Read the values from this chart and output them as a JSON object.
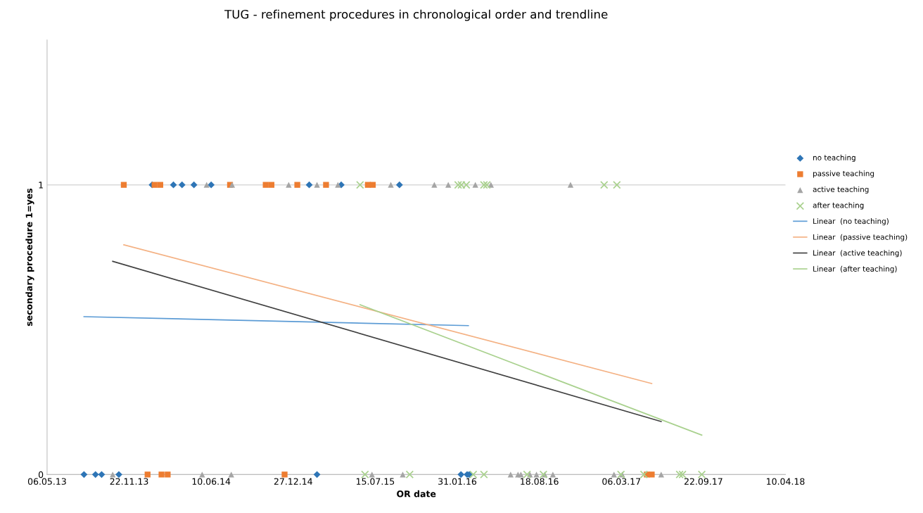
{
  "chart_data": {
    "type": "scatter",
    "title": "TUG - refinement procedures in chronological order and trendline",
    "xlabel": "OR date",
    "ylabel": "secondary procedure 1=yes",
    "xlim": [
      "2013-05-06",
      "2018-04-10"
    ],
    "xticks": [
      {
        "value": "2013-05-06",
        "label": "06.05.13"
      },
      {
        "value": "2013-11-22",
        "label": "22.11.13"
      },
      {
        "value": "2014-06-10",
        "label": "10.06.14"
      },
      {
        "value": "2014-12-27",
        "label": "27.12.14"
      },
      {
        "value": "2015-07-15",
        "label": "15.07.15"
      },
      {
        "value": "2016-01-31",
        "label": "31.01.16"
      },
      {
        "value": "2016-08-18",
        "label": "18.08.16"
      },
      {
        "value": "2017-03-06",
        "label": "06.03.17"
      },
      {
        "value": "2017-09-22",
        "label": "22.09.17"
      },
      {
        "value": "2018-04-10",
        "label": "10.04.18"
      }
    ],
    "ylim": [
      0,
      1.5
    ],
    "yticks": [
      0,
      1
    ],
    "grid": "y",
    "legend": "right",
    "series": [
      {
        "name": "no teaching",
        "marker": "diamond",
        "color": "#2e75b6",
        "x": [
          "2013-08-04",
          "2013-09-01",
          "2013-09-16",
          "2013-10-28",
          "2014-01-17",
          "2014-03-10",
          "2014-03-31",
          "2014-04-29",
          "2014-06-10",
          "2015-02-04",
          "2015-02-23",
          "2015-04-23",
          "2015-09-12",
          "2016-02-09",
          "2016-02-24",
          "2016-02-29"
        ],
        "values": [
          0,
          0,
          0,
          0,
          1,
          1,
          1,
          1,
          1,
          1,
          0,
          1,
          1,
          0,
          0,
          0
        ]
      },
      {
        "name": "passive teaching",
        "marker": "square",
        "color": "#ed7d31",
        "x": [
          "2013-11-09",
          "2014-01-06",
          "2014-01-23",
          "2014-02-06",
          "2014-02-09",
          "2014-02-24",
          "2014-07-26",
          "2014-10-21",
          "2014-11-04",
          "2014-12-06",
          "2015-01-06",
          "2015-03-17",
          "2015-06-27",
          "2015-07-09",
          "2017-05-07",
          "2017-05-19"
        ],
        "values": [
          1,
          0,
          1,
          1,
          0,
          0,
          1,
          1,
          1,
          0,
          1,
          1,
          1,
          1,
          0,
          0
        ]
      },
      {
        "name": "active teaching",
        "marker": "triangle",
        "color": "#a5a5a5",
        "x": [
          "2013-10-13",
          "2014-05-19",
          "2014-05-30",
          "2014-07-29",
          "2014-07-31",
          "2014-12-16",
          "2015-02-23",
          "2015-04-15",
          "2015-07-07",
          "2015-08-22",
          "2015-09-20",
          "2015-12-06",
          "2016-01-09",
          "2016-03-15",
          "2016-04-22",
          "2016-06-09",
          "2016-06-27",
          "2016-07-04",
          "2016-07-26",
          "2016-08-11",
          "2016-08-31",
          "2016-09-20",
          "2016-11-02",
          "2017-02-16",
          "2017-03-08",
          "2017-06-11"
        ],
        "values": [
          0,
          0,
          1,
          0,
          1,
          1,
          1,
          1,
          0,
          1,
          0,
          1,
          1,
          1,
          1,
          0,
          0,
          0,
          0,
          0,
          0,
          0,
          1,
          0,
          0,
          0
        ]
      },
      {
        "name": "after teaching",
        "marker": "cross",
        "color": "#a9d18e",
        "x": [
          "2015-06-08",
          "2015-06-20",
          "2015-10-07",
          "2016-02-02",
          "2016-02-10",
          "2016-02-22",
          "2016-03-10",
          "2016-04-05",
          "2016-04-05",
          "2016-04-12",
          "2016-07-19",
          "2016-08-28",
          "2017-01-23",
          "2017-02-23",
          "2017-03-05",
          "2017-04-30",
          "2017-07-26",
          "2017-08-02",
          "2017-09-18"
        ],
        "values": [
          1,
          0,
          0,
          1,
          1,
          1,
          0,
          1,
          0,
          1,
          0,
          0,
          1,
          1,
          0,
          0,
          0,
          0,
          0
        ]
      },
      {
        "name": "Linear  (no teaching)",
        "type": "line",
        "marker": "none",
        "color": "#5b9bd5",
        "x": [
          "2013-08-04",
          "2016-02-27"
        ],
        "values": [
          0.545,
          0.514
        ]
      },
      {
        "name": "Linear  (passive teaching)",
        "type": "line",
        "marker": "none",
        "color": "#f4b183",
        "x": [
          "2013-11-09",
          "2017-05-19"
        ],
        "values": [
          0.793,
          0.314
        ]
      },
      {
        "name": "Linear  (active teaching)",
        "type": "line",
        "marker": "none",
        "color": "#404040",
        "x": [
          "2013-10-13",
          "2017-06-11"
        ],
        "values": [
          0.736,
          0.183
        ]
      },
      {
        "name": "Linear  (after teaching)",
        "type": "line",
        "marker": "none",
        "color": "#a9d18e",
        "x": [
          "2015-06-08",
          "2017-09-18"
        ],
        "values": [
          0.586,
          0.136
        ]
      }
    ]
  }
}
